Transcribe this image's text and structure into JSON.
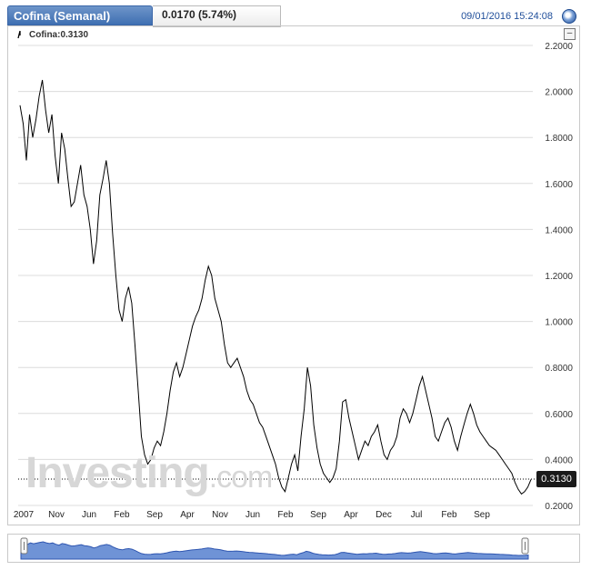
{
  "header": {
    "title": "Cofina (Semanal)",
    "change": "0.0170 (5.74%)",
    "datetime": "09/01/2016 15:24:08"
  },
  "legend": {
    "label": "Cofina:0.3130"
  },
  "watermark": {
    "brand": "Investing",
    "suffix": ".com"
  },
  "price_badge": "0.3130",
  "colors": {
    "tab": "#4a76b8",
    "line": "#000000",
    "grid": "#dcdcdc",
    "navigator_fill": "#6f93d6",
    "navigator_line": "#2f56b0"
  },
  "chart_data": {
    "type": "line",
    "series_name": "Cofina",
    "ylim": [
      0.2,
      2.2
    ],
    "yticks": [
      "2.2000",
      "2.0000",
      "1.8000",
      "1.6000",
      "1.4000",
      "1.2000",
      "1.0000",
      "0.8000",
      "0.6000",
      "0.4000",
      "0.2000"
    ],
    "xticks": [
      "2007",
      "Nov",
      "Jun",
      "Feb",
      "Sep",
      "Apr",
      "Nov",
      "Jun",
      "Feb",
      "Sep",
      "Apr",
      "Dec",
      "Jul",
      "Feb",
      "Sep"
    ],
    "last_value": 0.313,
    "values": [
      1.94,
      1.86,
      1.7,
      1.9,
      1.8,
      1.88,
      1.98,
      2.05,
      1.92,
      1.82,
      1.9,
      1.72,
      1.6,
      1.82,
      1.75,
      1.62,
      1.5,
      1.52,
      1.6,
      1.68,
      1.55,
      1.5,
      1.4,
      1.25,
      1.35,
      1.55,
      1.62,
      1.7,
      1.6,
      1.38,
      1.2,
      1.05,
      1.0,
      1.1,
      1.15,
      1.08,
      0.9,
      0.7,
      0.5,
      0.42,
      0.38,
      0.4,
      0.45,
      0.48,
      0.46,
      0.52,
      0.6,
      0.7,
      0.78,
      0.82,
      0.76,
      0.8,
      0.86,
      0.92,
      0.98,
      1.02,
      1.05,
      1.1,
      1.18,
      1.24,
      1.2,
      1.1,
      1.05,
      1.0,
      0.9,
      0.82,
      0.8,
      0.82,
      0.84,
      0.8,
      0.76,
      0.7,
      0.66,
      0.64,
      0.6,
      0.56,
      0.54,
      0.5,
      0.46,
      0.42,
      0.38,
      0.32,
      0.28,
      0.26,
      0.32,
      0.38,
      0.42,
      0.35,
      0.5,
      0.62,
      0.8,
      0.72,
      0.55,
      0.45,
      0.38,
      0.34,
      0.32,
      0.3,
      0.32,
      0.36,
      0.48,
      0.65,
      0.66,
      0.58,
      0.52,
      0.46,
      0.4,
      0.44,
      0.48,
      0.46,
      0.5,
      0.52,
      0.55,
      0.48,
      0.42,
      0.4,
      0.44,
      0.46,
      0.5,
      0.58,
      0.62,
      0.6,
      0.56,
      0.6,
      0.66,
      0.72,
      0.76,
      0.7,
      0.64,
      0.58,
      0.5,
      0.48,
      0.52,
      0.56,
      0.58,
      0.54,
      0.48,
      0.44,
      0.5,
      0.55,
      0.6,
      0.64,
      0.6,
      0.55,
      0.52,
      0.5,
      0.48,
      0.46,
      0.45,
      0.44,
      0.42,
      0.4,
      0.38,
      0.36,
      0.34,
      0.3,
      0.27,
      0.25,
      0.26,
      0.28,
      0.313
    ]
  }
}
